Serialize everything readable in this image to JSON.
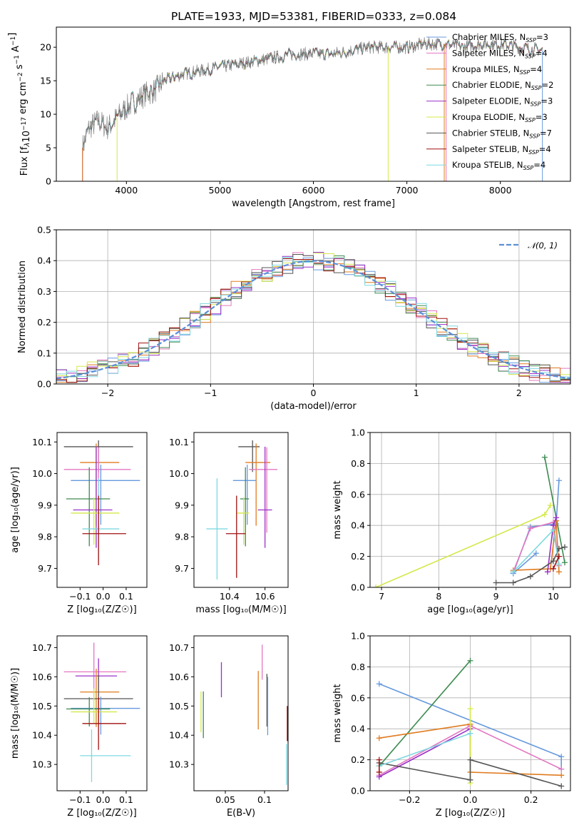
{
  "title": "PLATE=1933, MJD=53381, FIBERID=0333, z=0.084",
  "colors": {
    "chabrier_miles": "#6699dd",
    "salpeter_miles": "#e377c2",
    "kroupa_miles": "#e07b1f",
    "chabrier_elodie": "#3d8b50",
    "salpeter_elodie": "#9b30c8",
    "kroupa_elodie": "#d4e84a",
    "chabrier_stelib": "#555555",
    "salpeter_stelib": "#a01010",
    "kroupa_stelib": "#7fd8e0",
    "normal": "#5b8fd9",
    "grid": "#b0b0b0"
  },
  "chart_data": [
    {
      "id": "spectrum",
      "type": "line",
      "title": "PLATE=1933, MJD=53381, FIBERID=0333, z=0.084",
      "xlabel": "wavelength [Angstrom, rest frame]",
      "ylabel_main": "Flux [f",
      "ylabel_sub": "λ",
      "ylabel_mid": "10",
      "ylabel_exp1": "−17",
      "ylabel_rest": " erg cm",
      "ylabel_exp2": "−2",
      "ylabel_rest2": " s",
      "ylabel_exp3": "−1",
      "ylabel_rest3": " A",
      "ylabel_exp4": "−1",
      "ylabel_end": "]",
      "xlim": [
        3250,
        8750
      ],
      "ylim": [
        0,
        23
      ],
      "xticks": [
        4000,
        5000,
        6000,
        7000,
        8000
      ],
      "yticks": [
        0,
        5,
        10,
        15,
        20
      ],
      "grid": false,
      "legend_position": "top-right",
      "spectrum_range": [
        3530,
        8450
      ],
      "envelope": [
        [
          3530,
          5
        ],
        [
          3600,
          8
        ],
        [
          3700,
          9
        ],
        [
          3800,
          8
        ],
        [
          3900,
          9.5
        ],
        [
          4000,
          11
        ],
        [
          4100,
          12
        ],
        [
          4200,
          13
        ],
        [
          4300,
          13.5
        ],
        [
          4400,
          15
        ],
        [
          4600,
          16
        ],
        [
          4800,
          16.5
        ],
        [
          5000,
          17
        ],
        [
          5200,
          17.5
        ],
        [
          5400,
          18
        ],
        [
          5600,
          18.5
        ],
        [
          5800,
          19
        ],
        [
          6000,
          19
        ],
        [
          6200,
          19
        ],
        [
          6400,
          19.5
        ],
        [
          6600,
          20
        ],
        [
          6800,
          20
        ],
        [
          7000,
          20
        ],
        [
          7200,
          20.5
        ],
        [
          7400,
          20.5
        ],
        [
          7600,
          20
        ],
        [
          7800,
          20.5
        ],
        [
          8000,
          20.5
        ],
        [
          8200,
          20
        ],
        [
          8450,
          19.5
        ]
      ],
      "legend": [
        {
          "key": "chabrier_miles",
          "label": "Chabrier MILES, N",
          "sub": "SSP",
          "val": "=3"
        },
        {
          "key": "salpeter_miles",
          "label": "Salpeter MILES, N",
          "sub": "SSP",
          "val": "=4"
        },
        {
          "key": "kroupa_miles",
          "label": "Kroupa MILES, N",
          "sub": "SSP",
          "val": "=4"
        },
        {
          "key": "chabrier_elodie",
          "label": "Chabrier ELODIE, N",
          "sub": "SSP",
          "val": "=2"
        },
        {
          "key": "salpeter_elodie",
          "label": "Salpeter ELODIE, N",
          "sub": "SSP",
          "val": "=3"
        },
        {
          "key": "kroupa_elodie",
          "label": "Kroupa ELODIE, N",
          "sub": "SSP",
          "val": "=3"
        },
        {
          "key": "chabrier_stelib",
          "label": "Chabrier STELIB, N",
          "sub": "SSP",
          "val": "=7"
        },
        {
          "key": "salpeter_stelib",
          "label": "Salpeter STELIB, N",
          "sub": "SSP",
          "val": "=4"
        },
        {
          "key": "kroupa_stelib",
          "label": "Kroupa STELIB, N",
          "sub": "SSP",
          "val": "=4"
        }
      ],
      "drops": [
        {
          "key": "chabrier_miles",
          "range": [
            3530,
            8450
          ]
        },
        {
          "key": "kroupa_elodie",
          "range": [
            3900,
            6800
          ]
        },
        {
          "key": "salpeter_miles",
          "range": [
            3530,
            7420
          ]
        },
        {
          "key": "kroupa_miles",
          "range": [
            3530,
            7400
          ]
        }
      ]
    },
    {
      "id": "residuals",
      "type": "histogram",
      "xlabel": "(data-model)/error",
      "ylabel": "Normed distribution",
      "xlim": [
        -2.5,
        2.5
      ],
      "ylim": [
        0,
        0.5
      ],
      "xticks": [
        -2,
        -1,
        0,
        1,
        2
      ],
      "yticks": [
        0.0,
        0.1,
        0.2,
        0.3,
        0.4,
        0.5
      ],
      "grid": true,
      "legend_position": "top-right",
      "normal_label": "𝒩(0, 1)",
      "bin_width": 0.1
    },
    {
      "id": "age_vs_Z",
      "type": "errorbar",
      "xlabel": "Z [log₁₀(Z/Z☉)]",
      "ylabel": "age  [log₁₀(age/yr)]",
      "xlim": [
        -0.2,
        0.19
      ],
      "ylim": [
        9.64,
        10.13
      ],
      "xticks": [
        -0.1,
        0.0,
        0.1
      ],
      "yticks": [
        9.7,
        9.8,
        9.9,
        10.0,
        10.1
      ],
      "points": [
        {
          "key": "chabrier_stelib",
          "x": -0.02,
          "xerr": [
            0.15,
            0.15
          ],
          "y": 10.085,
          "yerr": [
            0.08,
            0.02
          ]
        },
        {
          "key": "kroupa_miles",
          "x": -0.03,
          "xerr": [
            0.07,
            0.1
          ],
          "y": 10.035,
          "yerr": [
            0.2,
            0.06
          ]
        },
        {
          "key": "salpeter_miles",
          "x": -0.02,
          "xerr": [
            0.15,
            0.14
          ],
          "y": 10.013,
          "yerr": [
            0.2,
            0.07
          ]
        },
        {
          "key": "chabrier_miles",
          "x": -0.01,
          "xerr": [
            0.13,
            0.17
          ],
          "y": 9.978,
          "yerr": [
            0.14,
            0.05
          ]
        },
        {
          "key": "chabrier_elodie",
          "x": -0.06,
          "xerr": [
            0.1,
            0.09
          ],
          "y": 9.92,
          "yerr": [
            0.15,
            0.1
          ]
        },
        {
          "key": "salpeter_elodie",
          "x": -0.03,
          "xerr": [
            0.1,
            0.07
          ],
          "y": 9.885,
          "yerr": [
            0.12,
            0.2
          ]
        },
        {
          "key": "kroupa_elodie",
          "x": -0.04,
          "xerr": [
            0.1,
            0.11
          ],
          "y": 9.875,
          "yerr": [
            0.1,
            0.05
          ]
        },
        {
          "key": "kroupa_stelib",
          "x": -0.02,
          "xerr": [
            0.07,
            0.09
          ],
          "y": 9.825,
          "yerr": [
            0.1,
            0.16
          ]
        },
        {
          "key": "salpeter_stelib",
          "x": -0.02,
          "xerr": [
            0.07,
            0.12
          ],
          "y": 9.81,
          "yerr": [
            0.1,
            0.12
          ]
        }
      ]
    },
    {
      "id": "age_vs_mass",
      "type": "errorbar",
      "xlabel": "mass [log₁₀(M/M☉)]",
      "ylabel": "",
      "xlim": [
        10.2,
        10.73
      ],
      "ylim": [
        9.64,
        10.13
      ],
      "xticks": [
        10.4,
        10.6
      ],
      "yticks": [
        9.7,
        9.8,
        9.9,
        10.0,
        10.1
      ],
      "points": [
        {
          "key": "chabrier_stelib",
          "x": 10.53,
          "xerr": [
            0.08,
            0.04
          ],
          "y": 10.085,
          "yerr": [
            0.08,
            0.02
          ]
        },
        {
          "key": "kroupa_miles",
          "x": 10.55,
          "xerr": [
            0.06,
            0.08
          ],
          "y": 10.035,
          "yerr": [
            0.2,
            0.06
          ]
        },
        {
          "key": "salpeter_miles",
          "x": 10.61,
          "xerr": [
            0.1,
            0.06
          ],
          "y": 10.013,
          "yerr": [
            0.2,
            0.07
          ]
        },
        {
          "key": "chabrier_miles",
          "x": 10.5,
          "xerr": [
            0.08,
            0.05
          ],
          "y": 9.978,
          "yerr": [
            0.14,
            0.05
          ]
        },
        {
          "key": "chabrier_elodie",
          "x": 10.49,
          "xerr": [
            0.03,
            0.02
          ],
          "y": 9.92,
          "yerr": [
            0.15,
            0.1
          ]
        },
        {
          "key": "salpeter_elodie",
          "x": 10.6,
          "xerr": [
            0.04,
            0.04
          ],
          "y": 9.885,
          "yerr": [
            0.12,
            0.2
          ]
        },
        {
          "key": "kroupa_elodie",
          "x": 10.48,
          "xerr": [
            0.04,
            0.03
          ],
          "y": 9.875,
          "yerr": [
            0.1,
            0.05
          ]
        },
        {
          "key": "kroupa_stelib",
          "x": 10.33,
          "xerr": [
            0.06,
            0.06
          ],
          "y": 9.825,
          "yerr": [
            0.16,
            0.16
          ]
        },
        {
          "key": "salpeter_stelib",
          "x": 10.44,
          "xerr": [
            0.06,
            0.05
          ],
          "y": 9.81,
          "yerr": [
            0.14,
            0.12
          ]
        }
      ]
    },
    {
      "id": "weight_vs_age",
      "type": "line",
      "xlabel": "age  [log₁₀(age/yr)]",
      "ylabel": "mass weight",
      "xlim": [
        6.8,
        10.3
      ],
      "ylim": [
        0,
        1.0
      ],
      "xticks": [
        7,
        8,
        9,
        10
      ],
      "yticks": [
        0.0,
        0.2,
        0.4,
        0.6,
        0.8,
        1.0
      ],
      "grid": true,
      "series": [
        {
          "key": "kroupa_elodie",
          "x": [
            6.9,
            9.85,
            9.95
          ],
          "y": [
            0.0,
            0.47,
            0.53
          ]
        },
        {
          "key": "chabrier_elodie",
          "x": [
            9.85,
            10.2
          ],
          "y": [
            0.84,
            0.16
          ]
        },
        {
          "key": "chabrier_miles",
          "x": [
            9.3,
            9.6,
            10.05,
            10.1
          ],
          "y": [
            0.09,
            0.39,
            0.41,
            0.69
          ]
        },
        {
          "key": "chabrier_miles",
          "x": [
            9.3,
            9.7
          ],
          "y": [
            0.09,
            0.22
          ]
        },
        {
          "key": "salpeter_miles",
          "x": [
            9.3,
            9.6,
            10.0,
            10.1
          ],
          "y": [
            0.1,
            0.38,
            0.42,
            0.14
          ]
        },
        {
          "key": "kroupa_miles",
          "x": [
            9.3,
            9.95,
            10.05,
            10.1
          ],
          "y": [
            0.11,
            0.12,
            0.43,
            0.1
          ]
        },
        {
          "key": "salpeter_elodie",
          "x": [
            9.9,
            10.0,
            10.05
          ],
          "y": [
            0.1,
            0.4,
            0.45
          ]
        },
        {
          "key": "chabrier_stelib",
          "x": [
            9.0,
            9.3,
            9.6,
            10.0,
            10.1,
            10.2
          ],
          "y": [
            0.03,
            0.03,
            0.07,
            0.17,
            0.25,
            0.26
          ]
        },
        {
          "key": "kroupa_stelib",
          "x": [
            9.3,
            10.0,
            10.1
          ],
          "y": [
            0.1,
            0.37,
            0.15
          ]
        },
        {
          "key": "salpeter_stelib",
          "x": [
            10.0,
            10.1
          ],
          "y": [
            0.12,
            0.2
          ]
        }
      ]
    },
    {
      "id": "mass_vs_Z",
      "type": "errorbar",
      "xlabel": "Z [log₁₀(Z/Z☉)]",
      "ylabel": "mass [log₁₀(M/M☉)]",
      "xlim": [
        -0.2,
        0.19
      ],
      "ylim": [
        10.21,
        10.74
      ],
      "xticks": [
        -0.1,
        0.0,
        0.1
      ],
      "yticks": [
        10.3,
        10.4,
        10.5,
        10.6,
        10.7
      ],
      "points": [
        {
          "key": "salpeter_miles",
          "x": -0.04,
          "xerr": [
            0.13,
            0.14
          ],
          "y": 10.617,
          "yerr": [
            0.1,
            0.1
          ]
        },
        {
          "key": "salpeter_elodie",
          "x": -0.02,
          "xerr": [
            0.1,
            0.08
          ],
          "y": 10.603,
          "yerr": [
            0.07,
            0.06
          ]
        },
        {
          "key": "kroupa_miles",
          "x": -0.03,
          "xerr": [
            0.07,
            0.1
          ],
          "y": 10.548,
          "yerr": [
            0.12,
            0.08
          ]
        },
        {
          "key": "chabrier_stelib",
          "x": -0.02,
          "xerr": [
            0.15,
            0.15
          ],
          "y": 10.525,
          "yerr": [
            0.09,
            0.08
          ]
        },
        {
          "key": "chabrier_miles",
          "x": -0.01,
          "xerr": [
            0.13,
            0.17
          ],
          "y": 10.492,
          "yerr": [
            0.09,
            0.04
          ]
        },
        {
          "key": "chabrier_elodie",
          "x": -0.06,
          "xerr": [
            0.1,
            0.09
          ],
          "y": 10.49,
          "yerr": [
            0.06,
            0.04
          ]
        },
        {
          "key": "kroupa_elodie",
          "x": -0.04,
          "xerr": [
            0.1,
            0.1
          ],
          "y": 10.48,
          "yerr": [
            0.04,
            0.08
          ]
        },
        {
          "key": "salpeter_stelib",
          "x": -0.02,
          "xerr": [
            0.07,
            0.12
          ],
          "y": 10.44,
          "yerr": [
            0.09,
            0.09
          ]
        },
        {
          "key": "kroupa_stelib",
          "x": -0.05,
          "xerr": [
            0.05,
            0.17
          ],
          "y": 10.33,
          "yerr": [
            0.09,
            0.09
          ]
        }
      ]
    },
    {
      "id": "mass_vs_EBV",
      "type": "errorbar",
      "xlabel": "E(B-V)",
      "ylabel": "",
      "xlim": [
        0.01,
        0.13
      ],
      "ylim": [
        10.21,
        10.74
      ],
      "xticks": [
        0.05,
        0.1
      ],
      "yticks": [
        10.3,
        10.4,
        10.5,
        10.6,
        10.7
      ],
      "points": [
        {
          "key": "salpeter_miles",
          "x": 0.097,
          "y": 10.64,
          "yerr": [
            0.05,
            0.07
          ]
        },
        {
          "key": "salpeter_elodie",
          "x": 0.045,
          "y": 10.59,
          "yerr": [
            0.06,
            0.06
          ]
        },
        {
          "key": "kroupa_miles",
          "x": 0.092,
          "y": 10.52,
          "yerr": [
            0.1,
            0.1
          ]
        },
        {
          "key": "chabrier_stelib",
          "x": 0.103,
          "y": 10.52,
          "yerr": [
            0.09,
            0.09
          ]
        },
        {
          "key": "chabrier_miles",
          "x": 0.104,
          "y": 10.5,
          "yerr": [
            0.1,
            0.1
          ]
        },
        {
          "key": "kroupa_elodie",
          "x": 0.019,
          "y": 10.48,
          "yerr": [
            0.07,
            0.07
          ]
        },
        {
          "key": "chabrier_elodie",
          "x": 0.022,
          "y": 10.47,
          "yerr": [
            0.08,
            0.08
          ]
        },
        {
          "key": "salpeter_stelib",
          "x": 0.129,
          "y": 10.44,
          "yerr": [
            0.06,
            0.06
          ]
        },
        {
          "key": "kroupa_stelib",
          "x": 0.128,
          "y": 10.3,
          "yerr": [
            0.07,
            0.07
          ]
        }
      ]
    },
    {
      "id": "weight_vs_Z",
      "type": "line",
      "xlabel": "Z [log₁₀(Z/Z☉)]",
      "ylabel": "mass weight",
      "xlim": [
        -0.33,
        0.33
      ],
      "ylim": [
        0,
        1.0
      ],
      "xticks": [
        -0.2,
        0.0,
        0.2
      ],
      "yticks": [
        0.0,
        0.2,
        0.4,
        0.6,
        0.8,
        1.0
      ],
      "grid": true,
      "series": [
        {
          "key": "chabrier_miles",
          "x": [
            -0.3,
            0.3,
            0.3
          ],
          "y": [
            0.69,
            0.22,
            0.14
          ]
        },
        {
          "key": "chabrier_elodie",
          "x": [
            -0.3,
            0.0
          ],
          "y": [
            0.16,
            0.84
          ]
        },
        {
          "key": "kroupa_miles",
          "x": [
            -0.3,
            0.0,
            0.0,
            0.3
          ],
          "y": [
            0.34,
            0.43,
            0.12,
            0.1
          ]
        },
        {
          "key": "salpeter_miles",
          "x": [
            -0.3,
            0.0,
            0.3
          ],
          "y": [
            0.1,
            0.42,
            0.14
          ]
        },
        {
          "key": "salpeter_elodie",
          "x": [
            -0.3,
            0.0
          ],
          "y": [
            0.09,
            0.4
          ]
        },
        {
          "key": "kroupa_elodie",
          "x": [
            0.0,
            0.0
          ],
          "y": [
            0.05,
            0.53
          ]
        },
        {
          "key": "chabrier_stelib",
          "x": [
            -0.3,
            0.0,
            0.0,
            0.3
          ],
          "y": [
            0.18,
            0.07,
            0.2,
            0.03
          ]
        },
        {
          "key": "kroupa_stelib",
          "x": [
            -0.3,
            0.0
          ],
          "y": [
            0.16,
            0.37
          ]
        },
        {
          "key": "salpeter_stelib",
          "x": [
            -0.3,
            -0.3
          ],
          "y": [
            0.12,
            0.2
          ]
        }
      ]
    }
  ]
}
